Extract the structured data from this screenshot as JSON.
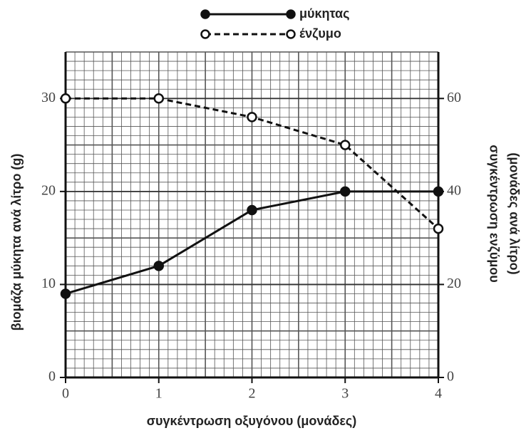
{
  "chart_data": {
    "type": "line",
    "x": [
      0,
      1,
      2,
      3,
      4
    ],
    "series": [
      {
        "name": "μύκητας",
        "color": "#111111",
        "dash": "solid",
        "marker": "filled",
        "axis": "y",
        "values": [
          9,
          12,
          18,
          20,
          20
        ]
      },
      {
        "name": "ένζυμο",
        "color": "#111111",
        "dash": "dashed",
        "marker": "open",
        "axis": "y2",
        "values": [
          60,
          60,
          56,
          50,
          32
        ]
      }
    ],
    "xlabel": "συγκέντρωση οξυγόνου (μονάδες)",
    "ylabel": "βιομάζα μύκητα ανά λίτρο (g)",
    "y2label": [
      "συγκέντρωση ενζύμου",
      "(μονάδες ανά λίτρο)"
    ],
    "xlim": [
      0,
      4
    ],
    "xticks": [
      0,
      1,
      2,
      3,
      4
    ],
    "ylim": [
      0,
      35
    ],
    "yticks": [
      0,
      10,
      20,
      30
    ],
    "y2lim": [
      0,
      70
    ],
    "y2ticks": [
      0,
      20,
      40,
      60
    ],
    "grid": true,
    "legend": "top"
  }
}
